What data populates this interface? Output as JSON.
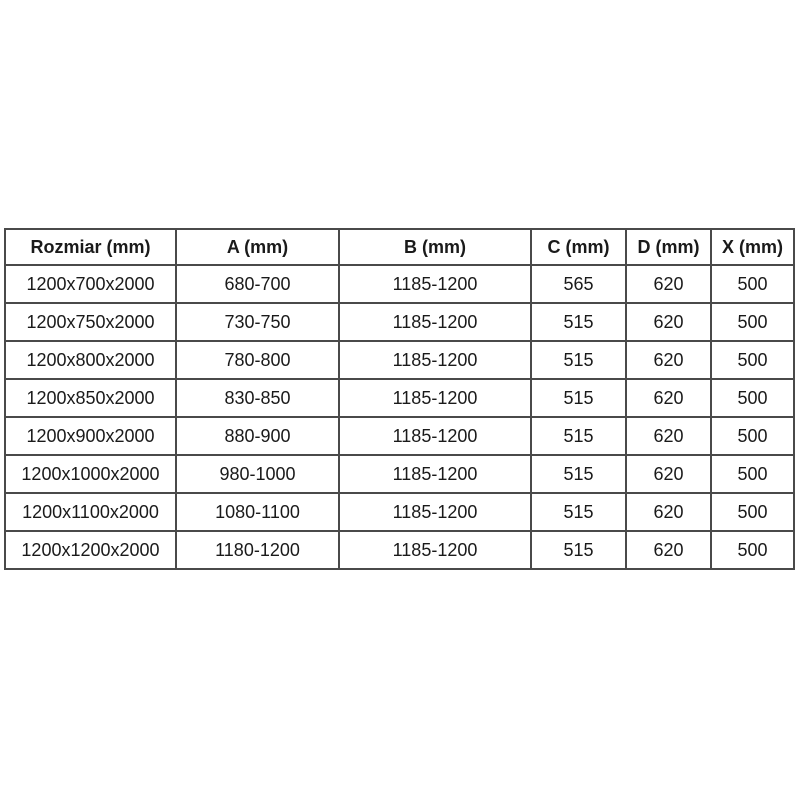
{
  "page": {
    "background": "#ffffff"
  },
  "colors": {
    "table_border": "#4a4a4a",
    "text": "#1a1a1a",
    "cell_background": "#ffffff"
  },
  "chart_data": {
    "type": "table",
    "columns": [
      "Rozmiar (mm)",
      "A (mm)",
      "B (mm)",
      "C (mm)",
      "D (mm)",
      "X (mm)"
    ],
    "rows": [
      [
        "1200x700x2000",
        "680-700",
        "1185-1200",
        "565",
        "620",
        "500"
      ],
      [
        "1200x750x2000",
        "730-750",
        "1185-1200",
        "515",
        "620",
        "500"
      ],
      [
        "1200x800x2000",
        "780-800",
        "1185-1200",
        "515",
        "620",
        "500"
      ],
      [
        "1200x850x2000",
        "830-850",
        "1185-1200",
        "515",
        "620",
        "500"
      ],
      [
        "1200x900x2000",
        "880-900",
        "1185-1200",
        "515",
        "620",
        "500"
      ],
      [
        "1200x1000x2000",
        "980-1000",
        "1185-1200",
        "515",
        "620",
        "500"
      ],
      [
        "1200x1100x2000",
        "1080-1100",
        "1185-1200",
        "515",
        "620",
        "500"
      ],
      [
        "1200x1200x2000",
        "1180-1200",
        "1185-1200",
        "515",
        "620",
        "500"
      ]
    ]
  }
}
